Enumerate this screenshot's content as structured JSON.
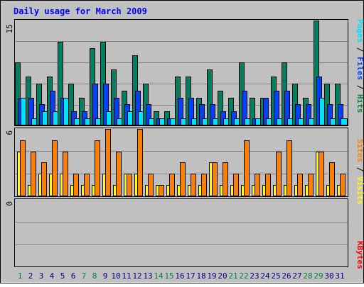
{
  "chart_data": [
    {
      "type": "bar",
      "title": "Daily usage for March 2009",
      "ymax_label": "15",
      "ylim": [
        0,
        15
      ],
      "grid": true,
      "legend_placement": "right-vertical",
      "legend": [
        {
          "text": "Pages",
          "color": "#00e0ff"
        },
        {
          "text": " / ",
          "color": "#000000"
        },
        {
          "text": "Files",
          "color": "#0040ff"
        },
        {
          "text": " / ",
          "color": "#000000"
        },
        {
          "text": "Hits",
          "color": "#008040"
        }
      ],
      "categories": [
        "1",
        "2",
        "3",
        "4",
        "5",
        "6",
        "7",
        "8",
        "9",
        "10",
        "11",
        "12",
        "13",
        "14",
        "15",
        "16",
        "17",
        "18",
        "19",
        "20",
        "21",
        "22",
        "23",
        "24",
        "25",
        "26",
        "27",
        "28",
        "29",
        "30",
        "31"
      ],
      "series": [
        {
          "name": "Hits",
          "color": "#008060",
          "values": [
            9,
            7,
            6,
            7,
            12,
            6,
            4,
            11,
            12,
            8,
            5,
            10,
            6,
            2,
            2,
            7,
            7,
            4,
            8,
            5,
            4,
            9,
            4,
            4,
            7,
            9,
            6,
            4,
            15,
            6,
            6
          ]
        },
        {
          "name": "Files",
          "color": "#0040ff",
          "values": [
            4,
            4,
            3,
            5,
            4,
            2,
            2,
            6,
            6,
            4,
            3,
            5,
            3,
            1,
            1,
            4,
            4,
            3,
            3,
            2,
            2,
            5,
            1,
            4,
            5,
            5,
            3,
            3,
            7,
            3,
            3
          ]
        },
        {
          "name": "Pages",
          "color": "#00e0ff",
          "values": [
            4,
            1,
            2,
            2,
            4,
            1,
            1,
            1,
            2,
            1,
            2,
            2,
            1,
            1,
            1,
            1,
            1,
            1,
            1,
            1,
            1,
            1,
            1,
            1,
            1,
            1,
            1,
            1,
            4,
            1,
            1
          ]
        }
      ]
    },
    {
      "type": "bar",
      "ymax_label": "6",
      "ylim": [
        0,
        6
      ],
      "grid": true,
      "legend_placement": "right-vertical",
      "legend": [
        {
          "text": "Sites",
          "color": "#ff8000"
        },
        {
          "text": " / ",
          "color": "#000000"
        },
        {
          "text": "Visits",
          "color": "#ffff00"
        }
      ],
      "categories": [
        "1",
        "2",
        "3",
        "4",
        "5",
        "6",
        "7",
        "8",
        "9",
        "10",
        "11",
        "12",
        "13",
        "14",
        "15",
        "16",
        "17",
        "18",
        "19",
        "20",
        "21",
        "22",
        "23",
        "24",
        "25",
        "26",
        "27",
        "28",
        "29",
        "30",
        "31"
      ],
      "series": [
        {
          "name": "Visits",
          "color": "#ffff00",
          "values": [
            4,
            1,
            2,
            2,
            2,
            1,
            1,
            1,
            2,
            1,
            2,
            2,
            1,
            1,
            1,
            1,
            1,
            1,
            3,
            1,
            1,
            1,
            1,
            1,
            1,
            1,
            1,
            1,
            4,
            1,
            1
          ]
        },
        {
          "name": "Sites",
          "color": "#ff8000",
          "values": [
            5,
            4,
            3,
            5,
            4,
            2,
            2,
            5,
            6,
            4,
            2,
            6,
            2,
            1,
            2,
            3,
            2,
            2,
            3,
            3,
            2,
            5,
            2,
            2,
            4,
            5,
            2,
            2,
            4,
            3,
            2
          ]
        }
      ]
    },
    {
      "type": "bar",
      "ymax_label": "0",
      "ylim": [
        0,
        1
      ],
      "grid": true,
      "legend_placement": "right-vertical",
      "legend": [
        {
          "text": "KBytes",
          "color": "#ff0000"
        }
      ],
      "categories": [
        "1",
        "2",
        "3",
        "4",
        "5",
        "6",
        "7",
        "8",
        "9",
        "10",
        "11",
        "12",
        "13",
        "14",
        "15",
        "16",
        "17",
        "18",
        "19",
        "20",
        "21",
        "22",
        "23",
        "24",
        "25",
        "26",
        "27",
        "28",
        "29",
        "30",
        "31"
      ],
      "series": []
    }
  ],
  "weekend_days": [
    "1",
    "7",
    "8",
    "14",
    "15",
    "21",
    "22",
    "28",
    "29"
  ],
  "colors": {
    "background": "#c0c0c0",
    "title": "#0000ff",
    "weekday_label": "#000080",
    "weekend_label": "#008040"
  }
}
